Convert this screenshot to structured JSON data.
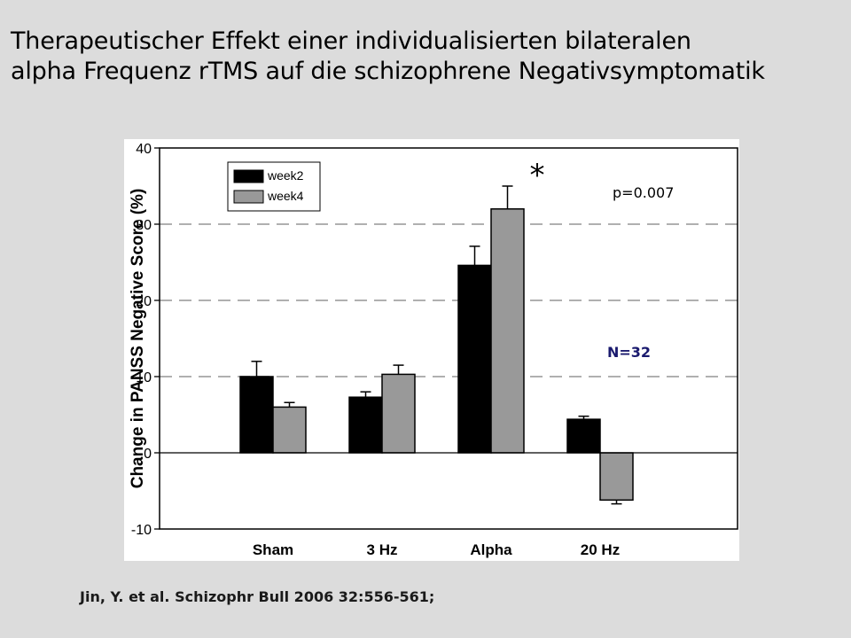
{
  "slide": {
    "title_line1": "Therapeutischer Effekt einer individualisierten bilateralen",
    "title_line2": "alpha Frequenz rTMS auf die schizophrene Negativsymptomatik",
    "citation": "Jin, Y. et al. Schizophr Bull 2006 32:556-561;"
  },
  "chart_data": {
    "type": "bar",
    "ylabel": "Change in PANSS Negative Score (%)",
    "xlabel": "",
    "ylim": [
      -10,
      40
    ],
    "yticks": [
      -10,
      0,
      10,
      20,
      30,
      40
    ],
    "grid_values": [
      10,
      20,
      30
    ],
    "categories": [
      "Sham",
      "3 Hz",
      "Alpha",
      "20 Hz"
    ],
    "series": [
      {
        "name": "week2",
        "color": "#000000",
        "values": [
          10,
          7.3,
          24.6,
          4.4
        ],
        "errors": [
          2.0,
          0.7,
          2.5,
          0.4
        ]
      },
      {
        "name": "week4",
        "color": "#999999",
        "values": [
          6.0,
          10.3,
          32.0,
          -6.2
        ],
        "errors": [
          0.6,
          1.2,
          3.0,
          0.5
        ]
      }
    ],
    "legend_position": "top-left",
    "annotations": {
      "significance": "*",
      "p_value": "p=0.007",
      "n_label": "N=32",
      "n_label_color": "#1a1a6e"
    }
  }
}
